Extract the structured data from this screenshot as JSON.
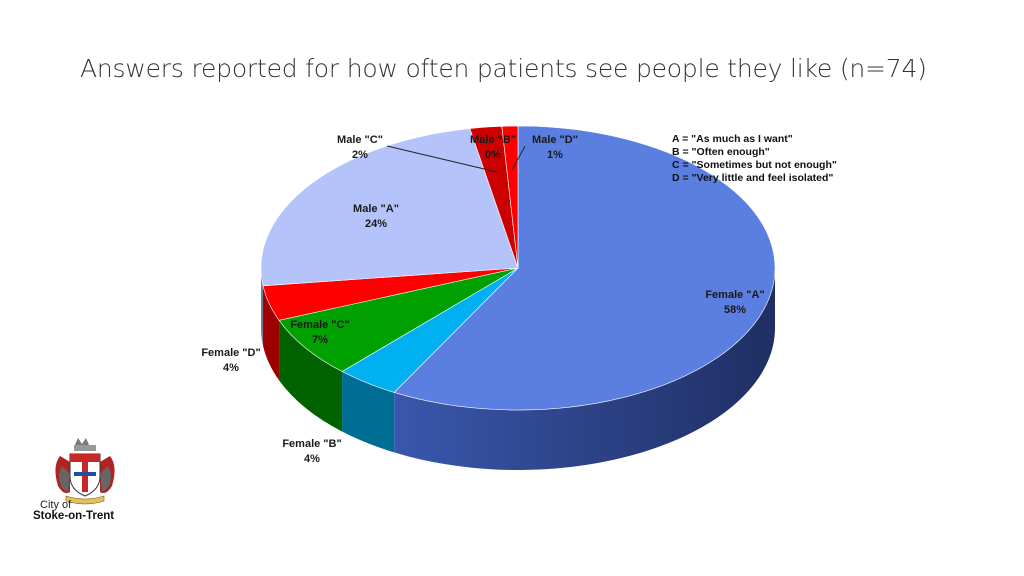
{
  "title": "Answers reported for how often patients see people they like (n=74)",
  "chart_data": {
    "type": "pie",
    "three_d": true,
    "slices": [
      {
        "name": "Female \"A\"",
        "pct_label": "58%",
        "value": 58,
        "color": "#5b7fe0"
      },
      {
        "name": "Female \"B\"",
        "pct_label": "4%",
        "value": 4,
        "color": "#00b0f0"
      },
      {
        "name": "Female \"C\"",
        "pct_label": "7%",
        "value": 7,
        "color": "#00a000"
      },
      {
        "name": "Female \"D\"",
        "pct_label": "4%",
        "value": 4,
        "color": "#ff0000"
      },
      {
        "name": "Male \"A\"",
        "pct_label": "24%",
        "value": 24,
        "color": "#b4c4fa"
      },
      {
        "name": "Male \"B\"",
        "pct_label": "0%",
        "value": 0,
        "color": "#00b0f0"
      },
      {
        "name": "Male \"C\"",
        "pct_label": "2%",
        "value": 2,
        "color": "#cc0000"
      },
      {
        "name": "Male \"D\"",
        "pct_label": "1%",
        "value": 1,
        "color": "#ff0000"
      }
    ],
    "legend": [
      "A = \"As much as I want\"",
      "B = \"Often enough\"",
      "C = \"Sometimes but not enough\"",
      "D = \"Very little and feel isolated\""
    ],
    "legend_position": "top-right"
  },
  "logo": {
    "line1": "City of",
    "line2": "Stoke-on-Trent"
  }
}
